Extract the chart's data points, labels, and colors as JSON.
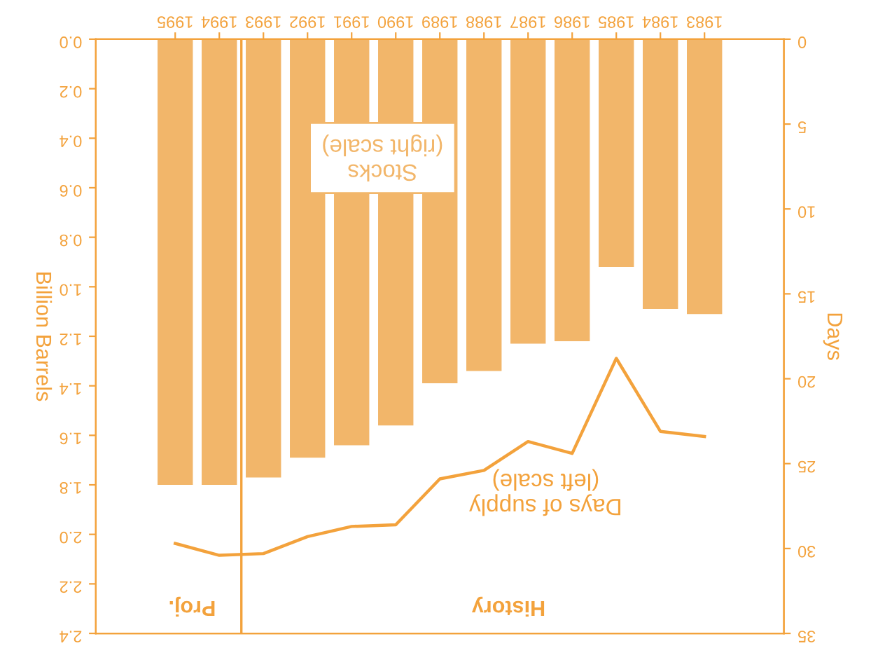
{
  "chart_data": {
    "type": "bar",
    "xlabel": null,
    "ylabel": "Days",
    "y2label": "Billion Barrels",
    "x": [
      1983,
      1984,
      1985,
      1986,
      1987,
      1988,
      1989,
      1990,
      1991,
      1992,
      1993,
      1994,
      1995
    ],
    "series": [
      {
        "name": "Stocks\n(right scale)",
        "axis": "y2",
        "color": "#f2b66a",
        "values": [
          1.11,
          1.09,
          0.92,
          1.22,
          1.23,
          1.34,
          1.39,
          1.56,
          1.64,
          1.69,
          1.77,
          1.8,
          1.8
        ]
      },
      {
        "name": "Days of supply\n(left scale)",
        "type": "line",
        "axis": "y",
        "color": "#f3a23c",
        "values": [
          23.4,
          23.1,
          18.8,
          24.4,
          23.7,
          25.4,
          25.9,
          28.6,
          28.7,
          29.3,
          30.3,
          30.4,
          29.7
        ]
      }
    ],
    "xlim": [
      1996.8,
      1981.2
    ],
    "xticks": [
      1983,
      1984,
      1985,
      1986,
      1987,
      1988,
      1989,
      1990,
      1991,
      1992,
      1993,
      1994,
      1995
    ],
    "ylim": [
      35,
      0
    ],
    "yticks": [
      0,
      5,
      10,
      15,
      20,
      25,
      30,
      35
    ],
    "y2lim": [
      2.4,
      0
    ],
    "y2ticks": [
      {
        "value": 0,
        "label": "0.0"
      },
      {
        "value": 0.2,
        "label": "0.2"
      },
      {
        "value": 0.4,
        "label": "0.4"
      },
      {
        "value": 0.6,
        "label": "0.6"
      },
      {
        "value": 0.8,
        "label": "0.8"
      },
      {
        "value": 1.0,
        "label": "1.0"
      },
      {
        "value": 1.2,
        "label": "1.2"
      },
      {
        "value": 1.4,
        "label": "1.4"
      },
      {
        "value": 1.6,
        "label": "1.6"
      },
      {
        "value": 1.8,
        "label": "1.8"
      },
      {
        "value": 2.0,
        "label": "2.0"
      },
      {
        "value": 2.2,
        "label": "2.2"
      },
      {
        "value": 2.4,
        "label": "2.4"
      }
    ],
    "ref_lines": [
      {
        "axis": "x",
        "value": 1993.5,
        "color": "#f3a23c"
      }
    ],
    "annotations": [
      "History",
      "Proj."
    ],
    "grid": false,
    "legend": false
  }
}
